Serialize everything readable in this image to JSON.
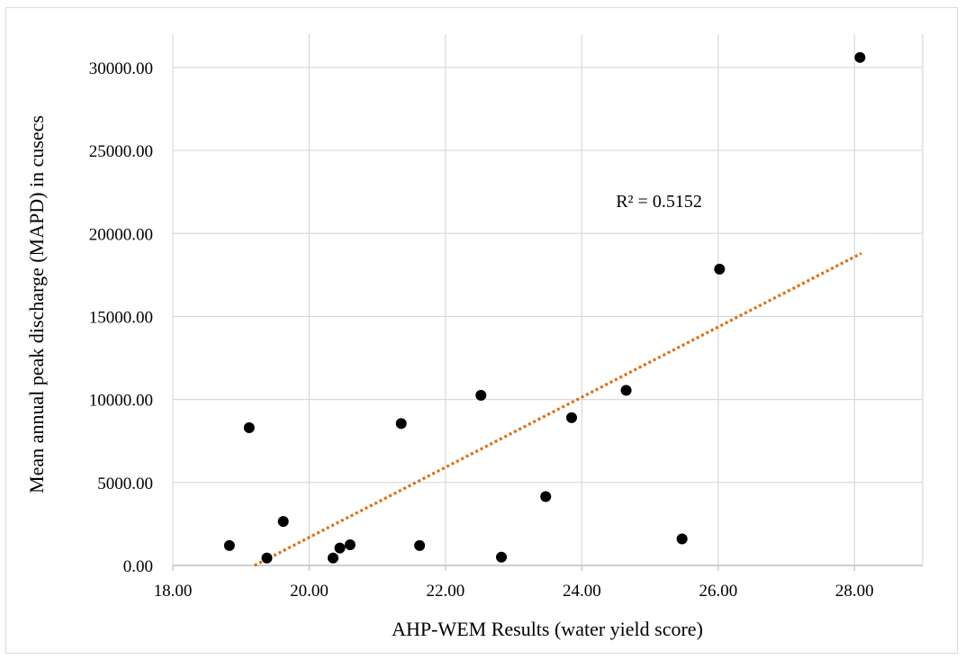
{
  "chart_data": {
    "type": "scatter",
    "title": "",
    "xlabel": "AHP-WEM Results (water yield score)",
    "ylabel": "Mean annual peak discharge (MAPD) in cusecs",
    "xlim": [
      18,
      29
    ],
    "ylim": [
      0,
      32000
    ],
    "x_ticks": [
      18,
      20,
      22,
      24,
      26,
      28
    ],
    "x_tick_labels": [
      "18.00",
      "20.00",
      "22.00",
      "24.00",
      "26.00",
      "28.00"
    ],
    "y_ticks": [
      0,
      5000,
      10000,
      15000,
      20000,
      25000,
      30000
    ],
    "y_tick_labels": [
      "0.00",
      "5000.00",
      "10000.00",
      "15000.00",
      "20000.00",
      "25000.00",
      "30000.00"
    ],
    "grid": true,
    "legend": "none",
    "marker_color": "#000000",
    "trendline": {
      "type": "linear",
      "style": "dotted",
      "color": "#e36c0a",
      "x_range": [
        19.2,
        28.1
      ],
      "y_at_start": 0,
      "y_at_end": 18800
    },
    "annotation": {
      "text": "R² = 0.5152",
      "x": 24.5,
      "y": 21600
    },
    "points": [
      {
        "x": 18.83,
        "y": 1200
      },
      {
        "x": 19.12,
        "y": 8300
      },
      {
        "x": 19.38,
        "y": 450
      },
      {
        "x": 19.62,
        "y": 2650
      },
      {
        "x": 20.35,
        "y": 450
      },
      {
        "x": 20.45,
        "y": 1050
      },
      {
        "x": 20.6,
        "y": 1250
      },
      {
        "x": 21.35,
        "y": 8550
      },
      {
        "x": 21.62,
        "y": 1200
      },
      {
        "x": 22.52,
        "y": 10250
      },
      {
        "x": 22.82,
        "y": 500
      },
      {
        "x": 23.47,
        "y": 4150
      },
      {
        "x": 23.85,
        "y": 8900
      },
      {
        "x": 24.65,
        "y": 10550
      },
      {
        "x": 25.47,
        "y": 1600
      },
      {
        "x": 26.02,
        "y": 17850
      },
      {
        "x": 28.08,
        "y": 30600
      }
    ]
  }
}
